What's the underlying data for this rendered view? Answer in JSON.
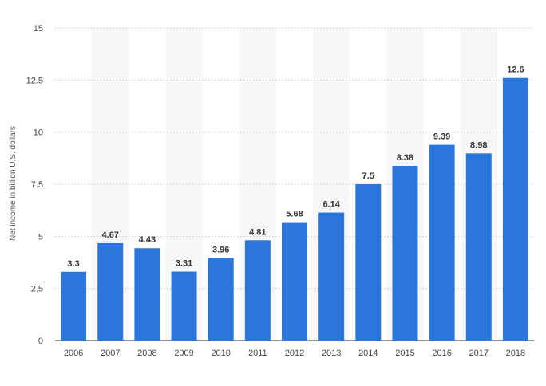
{
  "chart_data": {
    "type": "bar",
    "categories": [
      "2006",
      "2007",
      "2008",
      "2009",
      "2010",
      "2011",
      "2012",
      "2013",
      "2014",
      "2015",
      "2016",
      "2017",
      "2018"
    ],
    "values": [
      3.3,
      4.67,
      4.43,
      3.31,
      3.96,
      4.81,
      5.68,
      6.14,
      7.5,
      8.38,
      9.39,
      8.98,
      12.6
    ],
    "value_labels": [
      "3.3",
      "4.67",
      "4.43",
      "3.31",
      "3.96",
      "4.81",
      "5.68",
      "6.14",
      "7.5",
      "8.38",
      "9.39",
      "8.98",
      "12.6"
    ],
    "ylabel": "Net income in billion U.S. dollars",
    "ylim": [
      0,
      15
    ],
    "yticks": [
      0,
      2.5,
      5,
      7.5,
      10,
      12.5,
      15
    ],
    "ytick_labels": [
      "0",
      "2.5",
      "5",
      "7.5",
      "10",
      "12.5",
      "15"
    ],
    "grid": true,
    "bar_color": "#2a76dd",
    "band_color": "#f7f7f7",
    "grid_color": "#c8c8c8"
  }
}
